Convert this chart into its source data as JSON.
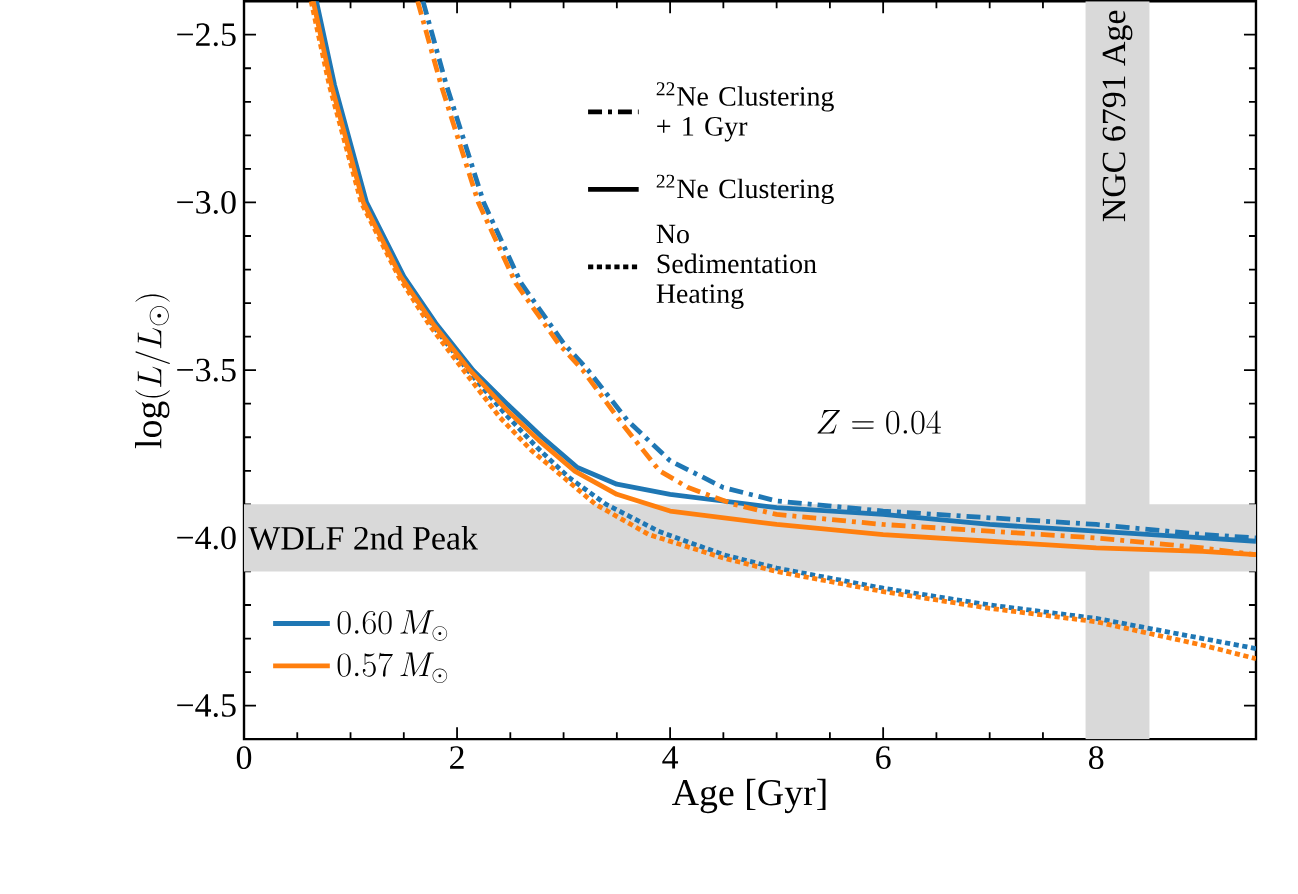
{
  "chart_data": {
    "type": "line",
    "xlabel": "Age [Gyr]",
    "ylabel": "\\log(L/L_\\odot)",
    "xlim": [
      0,
      9.5
    ],
    "ylim": [
      -4.6,
      -2.4
    ],
    "xticks": [
      0,
      2,
      4,
      6,
      8
    ],
    "yticks": [
      {
        "value": -4.5,
        "label": "−4.5"
      },
      {
        "value": -4.0,
        "label": "−4.0"
      },
      {
        "value": -3.5,
        "label": "−3.5"
      },
      {
        "value": -3.0,
        "label": "−3.0"
      },
      {
        "value": -2.5,
        "label": "−2.5"
      }
    ],
    "legend": "bottom left",
    "annotations": [
      "Z = 0.04",
      "$^{22}$Ne Clustering + 1 Gyr",
      "$^{22}$Ne Clustering",
      "No Sedimentation Heating"
    ],
    "bands": [
      {
        "axis": "y",
        "from": -4.1,
        "to": -3.9,
        "label": "WDLF 2nd Peak",
        "color": "#d9d9d9"
      },
      {
        "axis": "x",
        "from": 7.9,
        "to": 8.5,
        "label": "NGC 6791 Age",
        "color": "#d9d9d9"
      }
    ],
    "series": [
      {
        "color": "#1f77b4",
        "line_style": "dashdot",
        "x": [
          1.68,
          1.9,
          2.25,
          2.6,
          3.0,
          3.23,
          3.6,
          4.0,
          4.5,
          5.0,
          6,
          7,
          8,
          9,
          9.5
        ],
        "values": [
          -2.4,
          -2.65,
          -3.0,
          -3.24,
          -3.42,
          -3.5,
          -3.65,
          -3.77,
          -3.85,
          -3.89,
          -3.92,
          -3.94,
          -3.96,
          -3.99,
          -4.0
        ]
      },
      {
        "name": "0.60\\,M_\\odot",
        "color": "#1f77b4",
        "line_style": "solid",
        "x": [
          0.68,
          0.85,
          1.15,
          1.5,
          1.8,
          2.15,
          2.5,
          2.8,
          3.13,
          3.5,
          4,
          5,
          6,
          7,
          8,
          9,
          9.5
        ],
        "values": [
          -2.4,
          -2.65,
          -3.0,
          -3.22,
          -3.36,
          -3.5,
          -3.61,
          -3.7,
          -3.79,
          -3.84,
          -3.87,
          -3.91,
          -3.93,
          -3.96,
          -3.98,
          -4.0,
          -4.01
        ]
      },
      {
        "color": "#1f77b4",
        "line_style": "dotted",
        "x": [
          0.66,
          0.83,
          1.13,
          1.48,
          1.78,
          2.1,
          2.45,
          2.75,
          3.05,
          3.4,
          3.89,
          4.5,
          5,
          6,
          7,
          8,
          9,
          9.5
        ],
        "values": [
          -2.4,
          -2.65,
          -3.0,
          -3.22,
          -3.37,
          -3.5,
          -3.63,
          -3.73,
          -3.82,
          -3.9,
          -3.98,
          -4.05,
          -4.09,
          -4.15,
          -4.2,
          -4.24,
          -4.3,
          -4.33
        ]
      },
      {
        "color": "#ff7f0e",
        "line_style": "dashdot",
        "x": [
          1.63,
          1.85,
          2.2,
          2.55,
          2.95,
          3.18,
          3.55,
          3.9,
          4.17,
          4.6,
          5,
          6,
          7,
          8,
          9,
          9.5
        ],
        "values": [
          -2.4,
          -2.65,
          -3.0,
          -3.24,
          -3.42,
          -3.5,
          -3.66,
          -3.8,
          -3.85,
          -3.9,
          -3.93,
          -3.96,
          -3.98,
          -4.0,
          -4.03,
          -4.05
        ]
      },
      {
        "name": "0.57\\,M_\\odot",
        "color": "#ff7f0e",
        "line_style": "solid",
        "x": [
          0.65,
          0.82,
          1.12,
          1.47,
          1.77,
          2.12,
          2.47,
          2.77,
          3.1,
          3.5,
          4,
          5,
          6,
          7,
          8,
          9,
          9.5
        ],
        "values": [
          -2.4,
          -2.65,
          -3.0,
          -3.22,
          -3.36,
          -3.5,
          -3.62,
          -3.71,
          -3.8,
          -3.87,
          -3.92,
          -3.96,
          -3.99,
          -4.01,
          -4.03,
          -4.04,
          -4.05
        ]
      },
      {
        "color": "#ff7f0e",
        "line_style": "dotted",
        "x": [
          0.63,
          0.8,
          1.1,
          1.45,
          1.75,
          2.06,
          2.4,
          2.7,
          2.89,
          3.3,
          3.8,
          4.5,
          5,
          6,
          7,
          8,
          9,
          9.5
        ],
        "values": [
          -2.4,
          -2.65,
          -3.0,
          -3.22,
          -3.37,
          -3.5,
          -3.64,
          -3.74,
          -3.79,
          -3.9,
          -3.99,
          -4.06,
          -4.1,
          -4.16,
          -4.21,
          -4.25,
          -4.32,
          -4.36
        ]
      }
    ]
  }
}
